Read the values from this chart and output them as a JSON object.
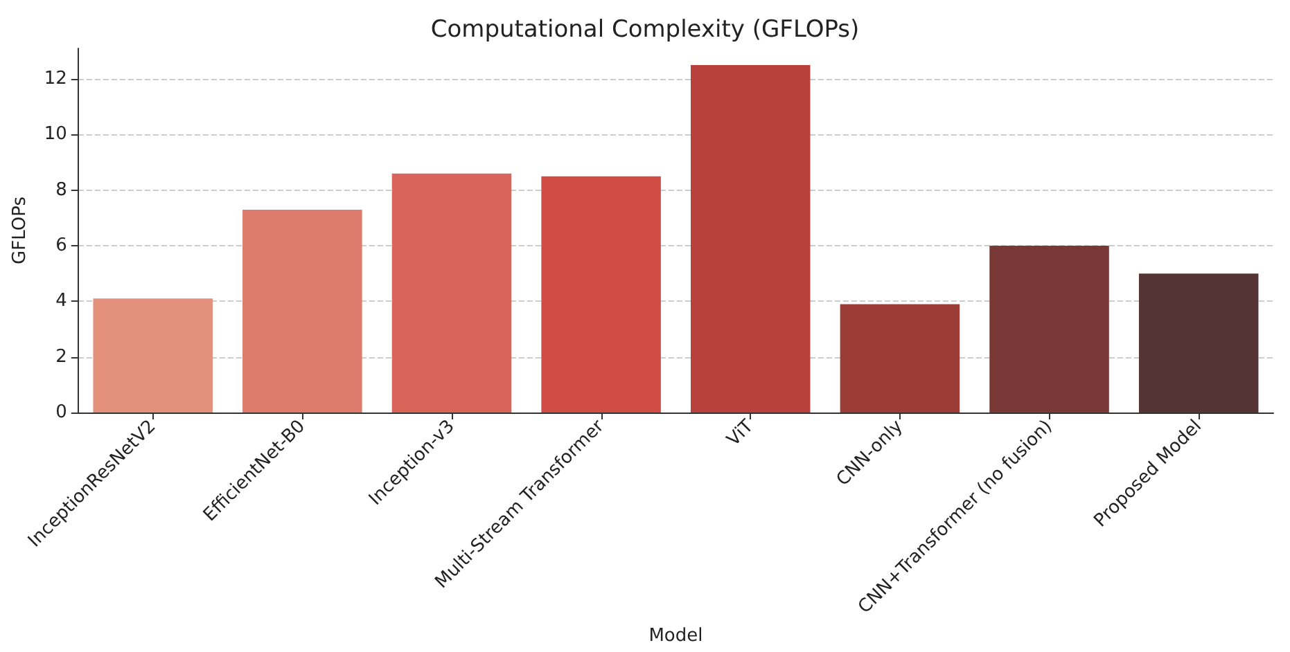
{
  "chart_data": {
    "type": "bar",
    "title": "Computational Complexity (GFLOPs)",
    "xlabel": "Model",
    "ylabel": "GFLOPs",
    "categories": [
      "InceptionResNetV2",
      "EfficientNet-B0",
      "Inception-v3",
      "Multi-Stream Transformer",
      "ViT",
      "CNN-only",
      "CNN+Transformer (no fusion)",
      "Proposed Model"
    ],
    "values": [
      4.1,
      7.3,
      8.6,
      8.5,
      12.5,
      3.9,
      6.0,
      5.0
    ],
    "colors": [
      "#e3917c",
      "#dd7a6b",
      "#d8645a",
      "#cf4d45",
      "#b9413b",
      "#9b3c37",
      "#773836",
      "#553435"
    ],
    "ylim": [
      0,
      13.1
    ],
    "yticks": [
      0,
      2,
      4,
      6,
      8,
      10,
      12
    ],
    "grid": "y"
  }
}
